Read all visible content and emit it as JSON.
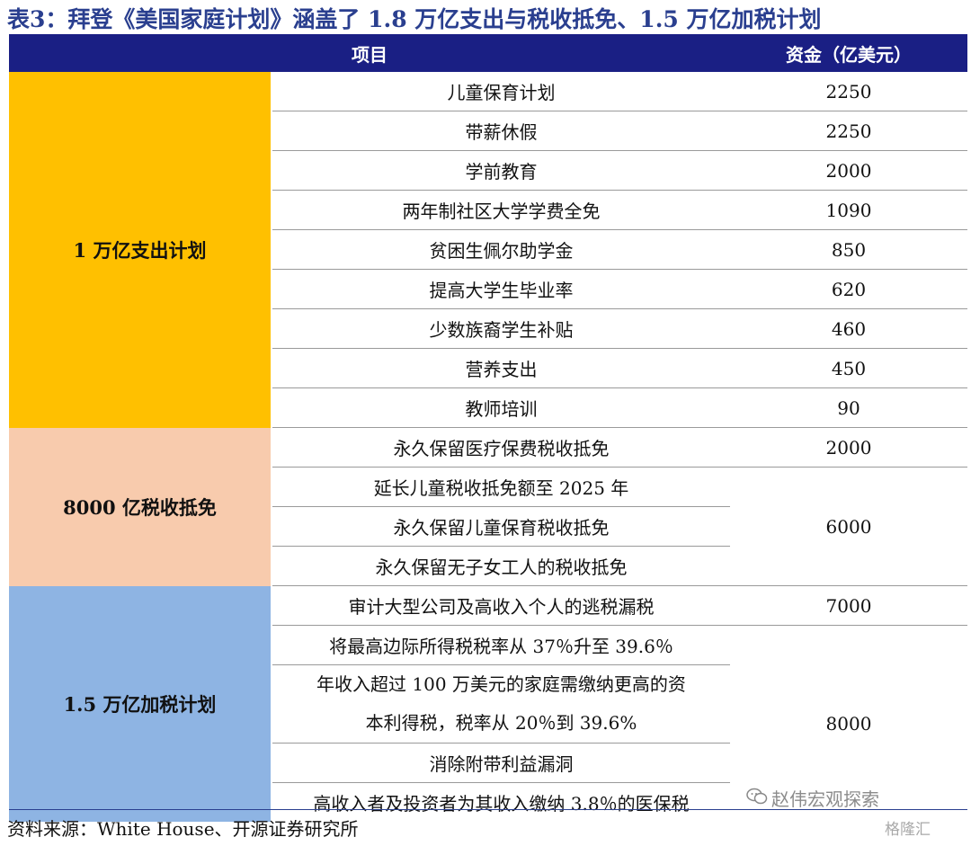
{
  "title": "表3：拜登《美国家庭计划》涵盖了 1.8 万亿支出与税收抵免、1.5 万亿加税计划",
  "header": {
    "item": "项目",
    "amount": "资金（亿美元）"
  },
  "groups": [
    {
      "name": "1 万亿支出计划",
      "color": "#ffc000",
      "rows": [
        {
          "item": "儿童保育计划",
          "amount": "2250"
        },
        {
          "item": "带薪休假",
          "amount": "2250"
        },
        {
          "item": "学前教育",
          "amount": "2000"
        },
        {
          "item": "两年制社区大学学费全免",
          "amount": "1090"
        },
        {
          "item": "贫困生佩尔助学金",
          "amount": "850"
        },
        {
          "item": "提高大学生毕业率",
          "amount": "620"
        },
        {
          "item": "少数族裔学生补贴",
          "amount": "460"
        },
        {
          "item": "营养支出",
          "amount": "450"
        },
        {
          "item": "教师培训",
          "amount": "90"
        }
      ]
    },
    {
      "name": "8000 亿税收抵免",
      "color": "#f8cbad",
      "rows": [
        {
          "item": "永久保留医疗保费税收抵免",
          "amount": "2000"
        },
        {
          "item": "延长儿童税收抵免额至 2025 年"
        },
        {
          "item": "永久保留儿童保育税收抵免"
        },
        {
          "item": "永久保留无子女工人的税收抵免"
        }
      ],
      "merged_amount": "6000"
    },
    {
      "name": "1.5 万亿加税计划",
      "color": "#8eb4e3",
      "rows": [
        {
          "item": "审计大型公司及高收入个人的逃税漏税",
          "amount": "7000"
        },
        {
          "item": "将最高边际所得税税率从 37％升至 39.6％"
        },
        {
          "item_line1": "年收入超过 100 万美元的家庭需缴纳更高的资",
          "item_line2": "本利得税，税率从 20％到 39.6%"
        },
        {
          "item": "消除附带利益漏洞"
        },
        {
          "item": "高收入者及投资者为其收入缴纳 3.8％的医保税"
        }
      ],
      "merged_amount": "8000"
    }
  ],
  "source": "资料来源：White House、开源证券研究所",
  "watermarks": {
    "account": "赵伟宏观探索",
    "site": "格隆汇"
  }
}
